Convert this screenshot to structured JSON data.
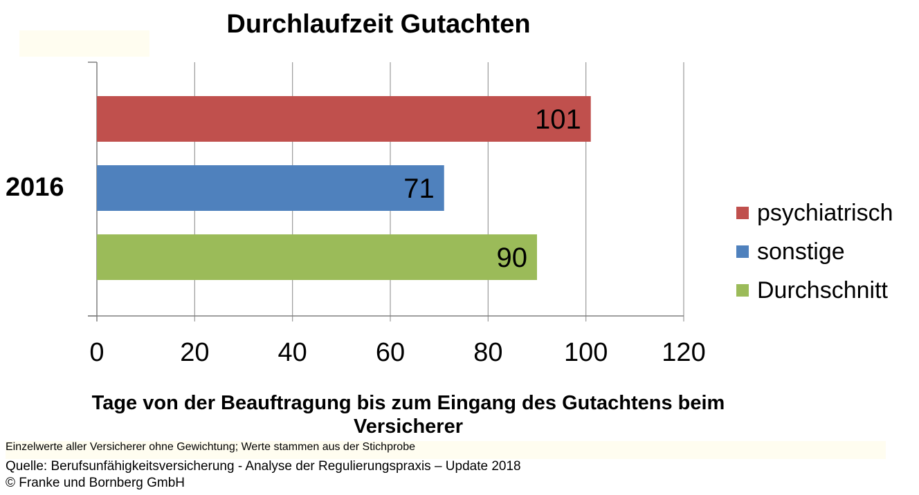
{
  "chart_data": {
    "type": "bar",
    "orientation": "horizontal",
    "title": "Durchlaufzeit Gutachten",
    "categories": [
      "2016"
    ],
    "series": [
      {
        "name": "psychiatrisch",
        "values": [
          101
        ],
        "color": "#c0504d"
      },
      {
        "name": "sonstige",
        "values": [
          71
        ],
        "color": "#4f81bd"
      },
      {
        "name": "Durchschnitt",
        "values": [
          90
        ],
        "color": "#9bbb59"
      }
    ],
    "data_labels": [
      "101",
      "71",
      "90"
    ],
    "xlabel": "Tage von der Beauftragung bis zum Eingang des Gutachtens beim Versicherer",
    "ylabel": "",
    "xlim": [
      0,
      120
    ],
    "xticks": [
      0,
      20,
      40,
      60,
      80,
      100,
      120
    ],
    "grid": "vertical",
    "legend": "right"
  },
  "footer": {
    "note": "Einzelwerte aller Versicherer ohne Gewichtung; Werte stammen aus der Stichprobe",
    "source": "Quelle: Berufsunfähigkeitsversicherung - Analyse der Regulierungspraxis – Update 2018",
    "copyright": "© Franke und Bornberg GmbH"
  }
}
